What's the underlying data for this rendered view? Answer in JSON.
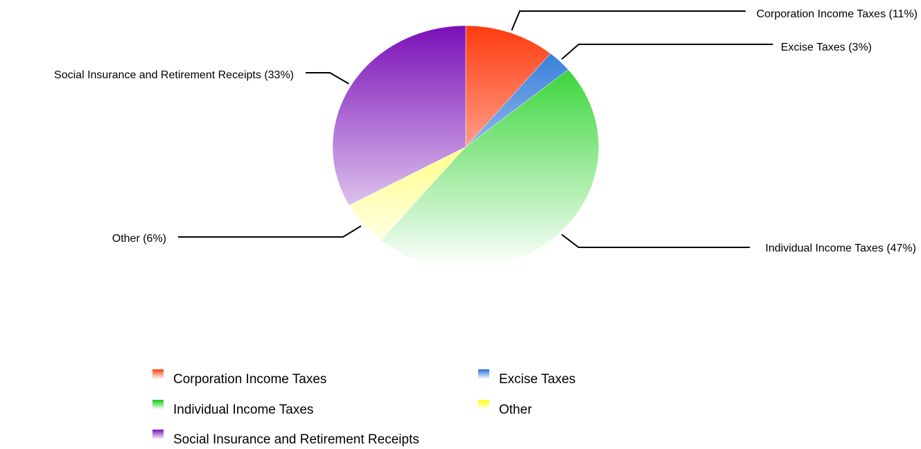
{
  "chart_data": {
    "type": "pie",
    "title": "",
    "slices": [
      {
        "label": "Corporation Income Taxes",
        "callout": "Corporation Income Taxes (11%)",
        "value": 11,
        "color": "#ff3b0f"
      },
      {
        "label": "Excise Taxes",
        "callout": "Excise Taxes (3%)",
        "value": 3,
        "color": "#1f6fd6"
      },
      {
        "label": "Individual Income Taxes",
        "callout": "Individual Income Taxes (47%)",
        "value": 47,
        "color": "#10cc10"
      },
      {
        "label": "Other",
        "callout": "Other (6%)",
        "value": 6,
        "color": "#ffff10"
      },
      {
        "label": "Social Insurance and Retirement Receipts",
        "callout": "Social Insurance and Retirement Receipts (33%)",
        "value": 33,
        "color": "#7a0fb8"
      }
    ],
    "start_angle": "12 o'clock",
    "direction": "clockwise",
    "legend_position": "bottom",
    "legend": [
      "Corporation Income Taxes",
      "Excise Taxes",
      "Individual Income Taxes",
      "Other",
      "Social Insurance and Retirement Receipts"
    ]
  }
}
